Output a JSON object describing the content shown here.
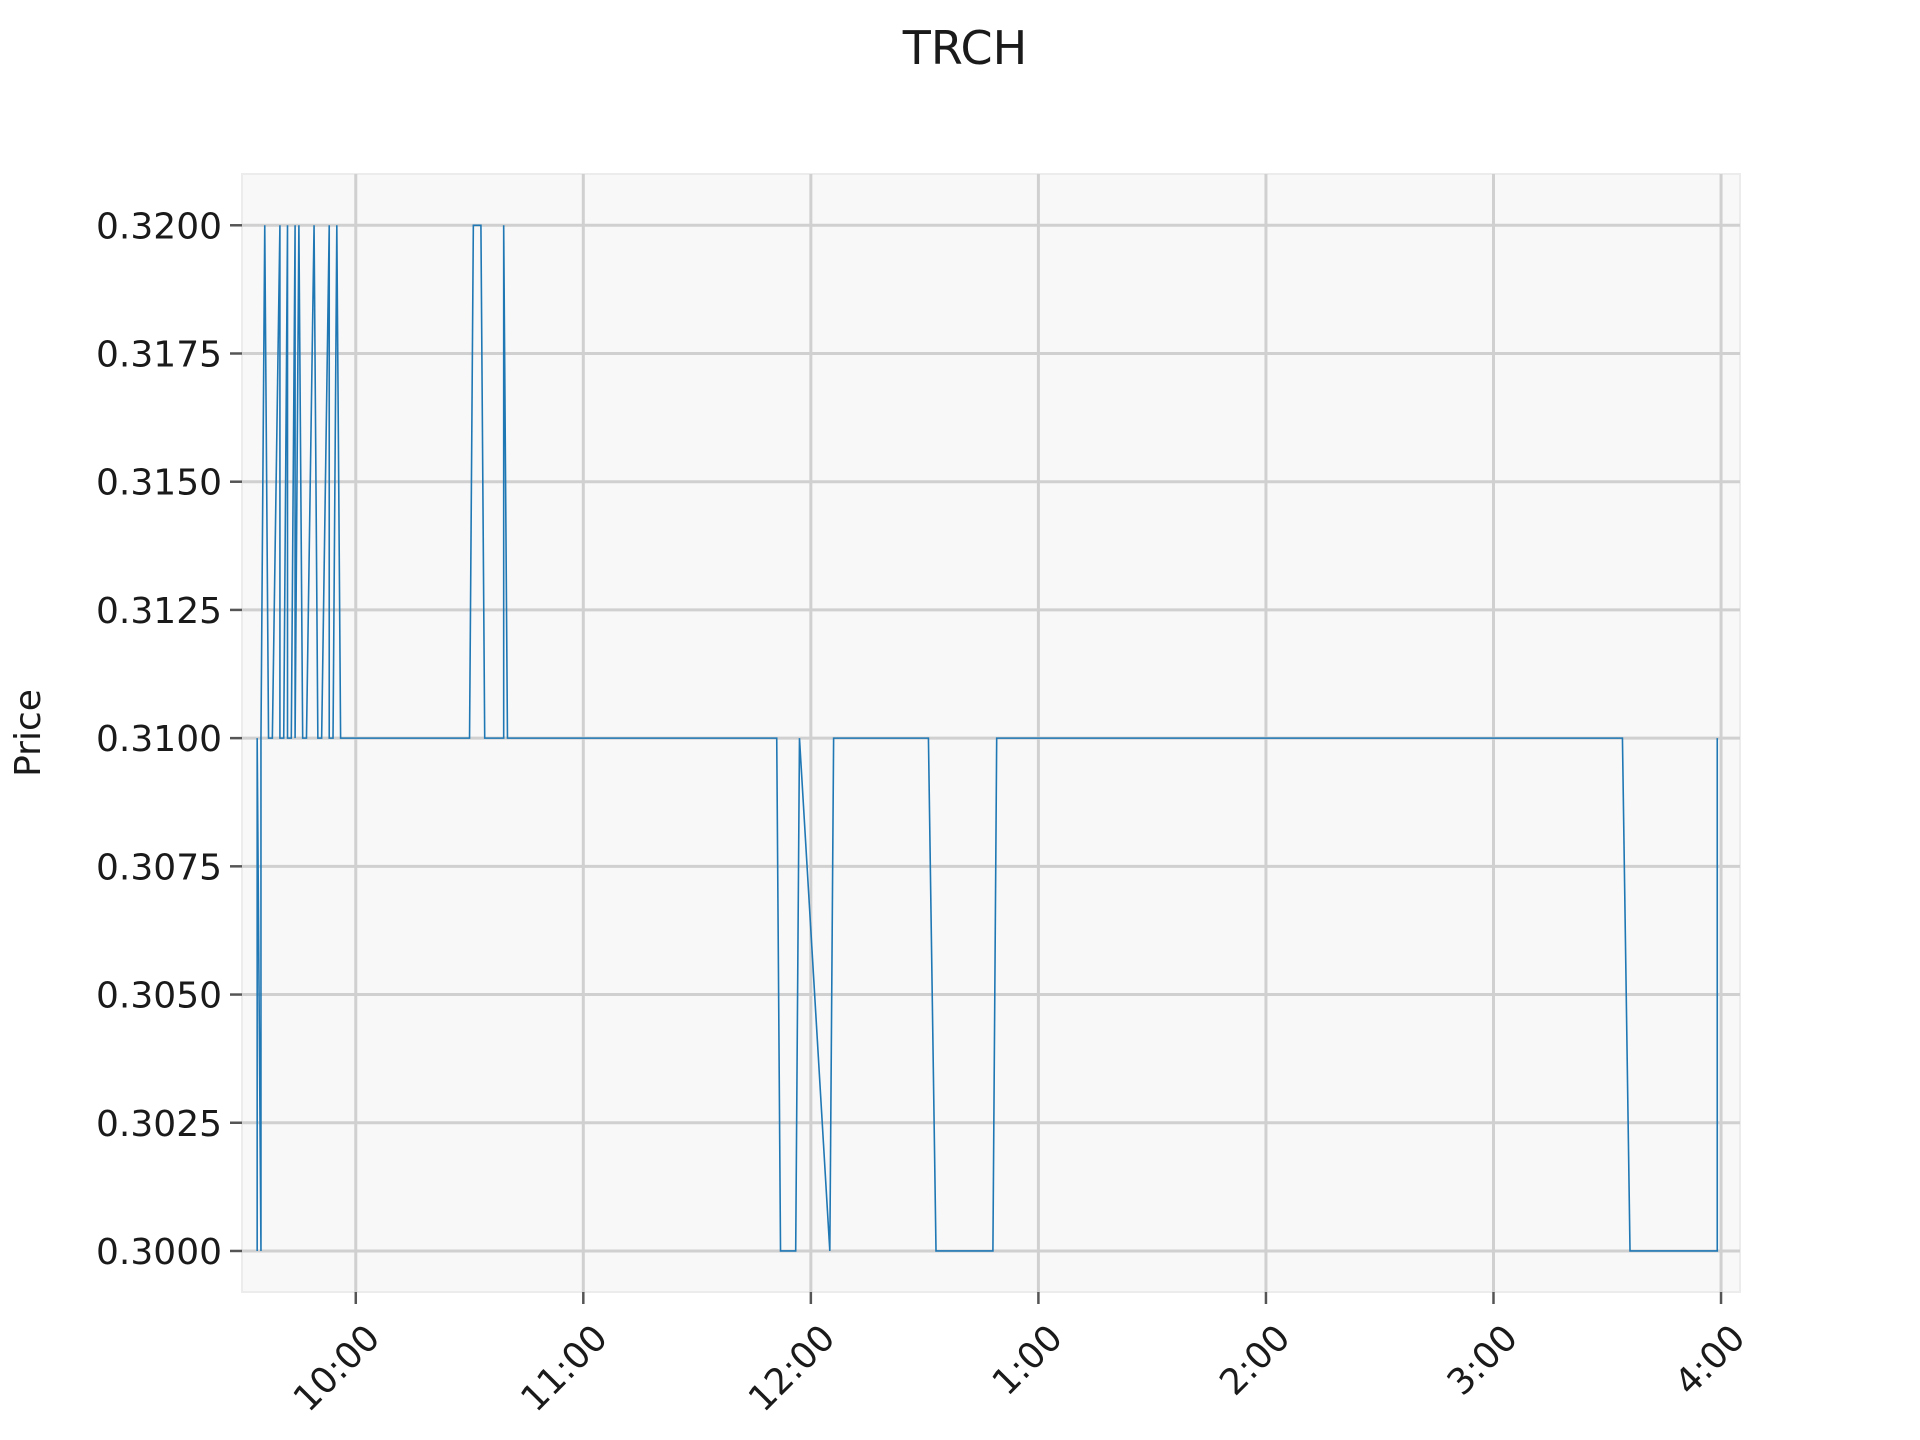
{
  "chart_data": {
    "type": "line",
    "title": "TRCH",
    "xlabel": "",
    "ylabel": "Price",
    "grid": true,
    "legend": "none",
    "line_color": "#1f77b4",
    "plot_background": "#f8f8f8",
    "xlim": [
      "9:30",
      "16:05"
    ],
    "ylim": [
      0.2992,
      0.321
    ],
    "x_ticks": [
      {
        "time": "10:00",
        "label": "10:00"
      },
      {
        "time": "11:00",
        "label": "11:00"
      },
      {
        "time": "12:00",
        "label": "12:00"
      },
      {
        "time": "13:00",
        "label": "1:00"
      },
      {
        "time": "14:00",
        "label": "2:00"
      },
      {
        "time": "15:00",
        "label": "3:00"
      },
      {
        "time": "16:00",
        "label": "4:00"
      }
    ],
    "y_ticks": [
      {
        "value": 0.32,
        "label": "0.3200"
      },
      {
        "value": 0.3175,
        "label": "0.3175"
      },
      {
        "value": 0.315,
        "label": "0.3150"
      },
      {
        "value": 0.3125,
        "label": "0.3125"
      },
      {
        "value": 0.31,
        "label": "0.3100"
      },
      {
        "value": 0.3075,
        "label": "0.3075"
      },
      {
        "value": 0.305,
        "label": "0.3050"
      },
      {
        "value": 0.3025,
        "label": "0.3025"
      },
      {
        "value": 0.3,
        "label": "0.3000"
      }
    ],
    "series": [
      {
        "x": [
          "9:34",
          "9:34",
          "9:35",
          "9:35",
          "9:35",
          "9:36",
          "9:37",
          "9:38",
          "9:38",
          "9:40",
          "9:40",
          "9:41",
          "9:42",
          "9:42",
          "9:43",
          "9:44",
          "9:44",
          "9:45",
          "9:46",
          "9:47",
          "9:47",
          "9:49",
          "9:50",
          "9:51",
          "9:51",
          "9:53",
          "9:53",
          "9:54",
          "9:55",
          "9:56",
          "10:30",
          "10:31",
          "10:33",
          "10:34",
          "10:36",
          "10:37",
          "10:37",
          "10:38",
          "10:38",
          "10:39",
          "10:39",
          "10:40",
          "10:42",
          "11:51",
          "11:52",
          "11:53",
          "11:55",
          "11:55",
          "11:56",
          "11:57",
          "11:57",
          "12:05",
          "12:06",
          "12:07",
          "12:31",
          "12:33",
          "12:48",
          "12:49",
          "15:34",
          "15:36",
          "15:59",
          "15:59"
        ],
        "y": [
          0.3,
          0.31,
          0.3,
          0.31,
          0.31,
          0.32,
          0.31,
          0.31,
          0.31,
          0.32,
          0.31,
          0.31,
          0.32,
          0.31,
          0.31,
          0.32,
          0.31,
          0.32,
          0.31,
          0.31,
          0.31,
          0.32,
          0.31,
          0.31,
          0.31,
          0.32,
          0.31,
          0.31,
          0.32,
          0.31,
          0.31,
          0.32,
          0.32,
          0.31,
          0.31,
          0.31,
          0.31,
          0.31,
          0.31,
          0.31,
          0.32,
          0.31,
          0.31,
          0.31,
          0.3,
          0.3,
          0.3,
          0.3,
          0.3,
          0.31,
          0.31,
          0.3,
          0.31,
          0.31,
          0.31,
          0.3,
          0.3,
          0.31,
          0.31,
          0.3,
          0.3,
          0.31
        ]
      }
    ]
  }
}
